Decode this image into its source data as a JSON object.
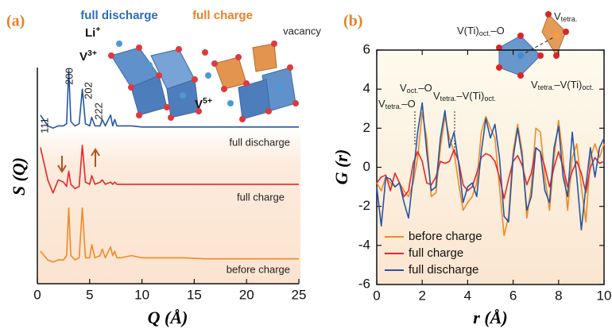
{
  "chart_data": [
    {
      "type": "line",
      "title": "(a)",
      "xlabel": "Q (Å)",
      "ylabel": "S (Q)",
      "x": [
        0.3,
        1,
        1.5,
        2,
        2.5,
        2.8,
        3,
        3.2,
        3.6,
        4,
        4.3,
        4.6,
        5,
        5.2,
        5.5,
        6,
        6.2,
        6.5,
        7,
        7.2,
        7.4,
        7.6,
        8,
        9,
        10,
        12,
        14,
        16,
        18,
        20,
        22,
        25
      ],
      "series": [
        {
          "name": "full discharge",
          "color": "#2456a4",
          "values": [
            7.8,
            7.3,
            7.2,
            7.3,
            7.3,
            7.4,
            9.9,
            7.5,
            7.3,
            7.4,
            9.0,
            7.4,
            7.3,
            7.7,
            7.3,
            7.3,
            7.6,
            7.3,
            7.8,
            7.3,
            7.6,
            7.3,
            7.3,
            7.3,
            7.25,
            7.25,
            7.25,
            7.25,
            7.25,
            7.25,
            7.25,
            7.25
          ]
        },
        {
          "name": "full charge",
          "color": "#e8262a",
          "values": [
            6.3,
            4.8,
            4.2,
            4.8,
            4.7,
            4.5,
            5.2,
            4.6,
            4.4,
            4.5,
            6.4,
            4.7,
            4.6,
            5.0,
            4.6,
            4.7,
            4.8,
            4.6,
            4.7,
            4.6,
            4.7,
            4.6,
            4.6,
            4.6,
            4.6,
            4.6,
            4.6,
            4.6,
            4.6,
            4.6,
            4.6,
            4.6
          ]
        },
        {
          "name": "before charge",
          "color": "#f08a24",
          "values": [
            1.5,
            1.1,
            1.0,
            1.1,
            1.1,
            1.3,
            3.5,
            1.3,
            1.1,
            1.2,
            3.5,
            1.2,
            1.2,
            1.8,
            1.2,
            1.3,
            1.6,
            1.2,
            1.7,
            1.3,
            1.5,
            1.2,
            1.2,
            1.3,
            1.2,
            1.2,
            1.2,
            1.15,
            1.15,
            1.15,
            1.15,
            1.15
          ]
        }
      ],
      "xlim": [
        0,
        25
      ],
      "xticks": [
        0,
        5,
        10,
        15,
        20,
        25
      ],
      "ylim": [
        0,
        10
      ],
      "peak_labels": [
        "111",
        "200",
        "202",
        "222"
      ],
      "inset_titles": [
        "full discharge",
        "full charge"
      ],
      "ion_labels": [
        [
          "Li",
          "+"
        ],
        [
          "V",
          "3+"
        ],
        [
          "V",
          "5+"
        ]
      ],
      "vacancy_label": "vacancy"
    },
    {
      "type": "line",
      "title": "(b)",
      "xlabel": "r (Å)",
      "ylabel": "G (r)",
      "x": [
        0,
        0.2,
        0.4,
        0.6,
        0.8,
        1,
        1.2,
        1.4,
        1.6,
        1.8,
        2,
        2.2,
        2.4,
        2.6,
        2.8,
        3,
        3.2,
        3.4,
        3.6,
        3.8,
        4,
        4.2,
        4.4,
        4.6,
        4.8,
        5,
        5.2,
        5.4,
        5.6,
        5.8,
        6,
        6.2,
        6.4,
        6.6,
        6.8,
        7,
        7.2,
        7.4,
        7.6,
        7.8,
        8,
        8.2,
        8.4,
        8.6,
        8.8,
        9,
        9.2,
        9.4,
        9.6,
        9.8,
        10
      ],
      "series": [
        {
          "name": "before charge",
          "color": "#f08a24",
          "values": [
            -0.8,
            -1.2,
            -0.5,
            -0.8,
            -1.0,
            -0.8,
            -1.2,
            -1.5,
            -0.8,
            0.5,
            2.8,
            1.5,
            -1.5,
            -1.3,
            1.0,
            2.6,
            1.5,
            0.8,
            -0.8,
            -2.2,
            -1.8,
            -1.5,
            -0.8,
            1.8,
            2.6,
            2.0,
            1.5,
            -1.0,
            -3.5,
            -2.5,
            0.8,
            2.2,
            0.8,
            -2.6,
            -1.0,
            2.0,
            1.8,
            -0.5,
            -2.2,
            0.5,
            2.4,
            0.5,
            -2.2,
            0.5,
            1.2,
            -1.0,
            -2.8,
            0.5,
            1.2,
            0.5,
            1.2
          ]
        },
        {
          "name": "full charge",
          "color": "#e8262a",
          "values": [
            -0.8,
            -0.5,
            -0.4,
            -1.2,
            -0.3,
            -0.8,
            -1.5,
            -1.2,
            0.2,
            0.8,
            0.3,
            -0.8,
            -0.9,
            -0.5,
            0.3,
            0.2,
            0.3,
            0.9,
            0.3,
            -0.9,
            -1.2,
            -1.0,
            -0.3,
            0.5,
            0.7,
            0.6,
            0.3,
            -0.5,
            -1.6,
            -0.6,
            0.3,
            0.6,
            0.1,
            -0.9,
            -0.3,
            1.0,
            0.8,
            0.0,
            -1.0,
            0.0,
            0.8,
            0.0,
            -1.0,
            -0.2,
            0.3,
            -0.3,
            -1.3,
            0.0,
            0.5,
            0.2,
            0.3
          ]
        },
        {
          "name": "full discharge",
          "color": "#2456a4",
          "values": [
            -1.0,
            -3.0,
            -0.5,
            -0.6,
            -1.0,
            -0.8,
            -1.8,
            -2.6,
            -0.5,
            1.8,
            3.3,
            0.8,
            -1.2,
            -1.0,
            1.5,
            2.9,
            1.0,
            1.8,
            0.2,
            -1.8,
            -1.0,
            -0.8,
            -1.5,
            0.8,
            2.5,
            1.5,
            2.2,
            0.5,
            -2.5,
            -2.8,
            0.5,
            2.0,
            0.5,
            -2.2,
            -1.5,
            1.0,
            0.8,
            -1.2,
            -1.8,
            1.0,
            2.1,
            -0.5,
            -1.5,
            1.8,
            -0.5,
            -3.2,
            -1.0,
            1.0,
            -0.5,
            1.0,
            1.5
          ]
        }
      ],
      "xlim": [
        0,
        10
      ],
      "xticks": [
        0,
        2,
        4,
        6,
        8,
        10
      ],
      "ylim": [
        -6,
        6
      ],
      "yticks": [
        -6,
        -4,
        -2,
        0,
        2,
        4,
        6
      ],
      "legend": "lower left",
      "annotations": [
        [
          "V(Ti)",
          "oct.",
          "–O"
        ],
        [
          "V",
          "tetra."
        ],
        [
          "V",
          "oct.",
          "–O"
        ],
        [
          "V",
          "tetra.",
          "–O"
        ],
        [
          "V",
          "tetra.",
          "–V(Ti)",
          "oct."
        ],
        [
          "V",
          "tetra.",
          "–V(Ti)",
          "oct."
        ]
      ]
    }
  ]
}
